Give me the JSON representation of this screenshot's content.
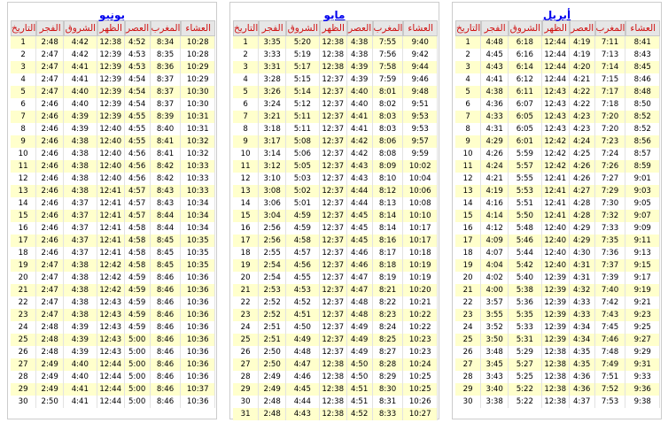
{
  "headers": [
    "التاريخ",
    "الفجر",
    "الشروق",
    "الظهر",
    "العصر",
    "المغرب",
    "العشاء"
  ],
  "months": [
    {
      "name": "أبريل",
      "rows": [
        [
          "1",
          "4:48",
          "6:18",
          "12:44",
          "4:19",
          "7:11",
          "8:41"
        ],
        [
          "2",
          "4:45",
          "6:16",
          "12:44",
          "4:19",
          "7:13",
          "8:43"
        ],
        [
          "3",
          "4:43",
          "6:14",
          "12:44",
          "4:20",
          "7:14",
          "8:45"
        ],
        [
          "4",
          "4:41",
          "6:12",
          "12:44",
          "4:21",
          "7:15",
          "8:46"
        ],
        [
          "5",
          "4:38",
          "6:11",
          "12:43",
          "4:22",
          "7:17",
          "8:48"
        ],
        [
          "6",
          "4:36",
          "6:07",
          "12:43",
          "4:22",
          "7:18",
          "8:50"
        ],
        [
          "7",
          "4:33",
          "6:05",
          "12:43",
          "4:23",
          "7:20",
          "8:52"
        ],
        [
          "8",
          "4:31",
          "6:05",
          "12:43",
          "4:23",
          "7:20",
          "8:52"
        ],
        [
          "9",
          "4:29",
          "6:01",
          "12:42",
          "4:24",
          "7:23",
          "8:56"
        ],
        [
          "10",
          "4:26",
          "5:59",
          "12:42",
          "4:25",
          "7:24",
          "8:57"
        ],
        [
          "11",
          "4:24",
          "5:57",
          "12:42",
          "4:26",
          "7:26",
          "8:59"
        ],
        [
          "12",
          "4:21",
          "5:55",
          "12:41",
          "4:26",
          "7:27",
          "9:01"
        ],
        [
          "13",
          "4:19",
          "5:53",
          "12:41",
          "4:27",
          "7:29",
          "9:03"
        ],
        [
          "14",
          "4:16",
          "5:51",
          "12:41",
          "4:28",
          "7:30",
          "9:05"
        ],
        [
          "15",
          "4:14",
          "5:50",
          "12:41",
          "4:28",
          "7:32",
          "9:07"
        ],
        [
          "16",
          "4:12",
          "5:48",
          "12:40",
          "4:29",
          "7:33",
          "9:09"
        ],
        [
          "17",
          "4:09",
          "5:46",
          "12:40",
          "4:29",
          "7:35",
          "9:11"
        ],
        [
          "18",
          "4:07",
          "5:44",
          "12:40",
          "4:30",
          "7:36",
          "9:13"
        ],
        [
          "19",
          "4:04",
          "5:42",
          "12:40",
          "4:31",
          "7:37",
          "9:15"
        ],
        [
          "20",
          "4:02",
          "5:40",
          "12:39",
          "4:31",
          "7:39",
          "9:17"
        ],
        [
          "21",
          "4:00",
          "5:38",
          "12:39",
          "4:32",
          "7:40",
          "9:19"
        ],
        [
          "22",
          "3:57",
          "5:36",
          "12:39",
          "4:33",
          "7:42",
          "9:21"
        ],
        [
          "23",
          "3:55",
          "5:35",
          "12:39",
          "4:33",
          "7:43",
          "9:23"
        ],
        [
          "24",
          "3:52",
          "5:33",
          "12:39",
          "4:34",
          "7:45",
          "9:25"
        ],
        [
          "25",
          "3:50",
          "5:31",
          "12:39",
          "4:34",
          "7:46",
          "9:27"
        ],
        [
          "26",
          "3:48",
          "5:29",
          "12:38",
          "4:35",
          "7:48",
          "9:29"
        ],
        [
          "27",
          "3:45",
          "5:27",
          "12:38",
          "4:35",
          "7:49",
          "9:31"
        ],
        [
          "28",
          "3:43",
          "5:25",
          "12:38",
          "4:36",
          "7:51",
          "9:33"
        ],
        [
          "29",
          "3:40",
          "5:22",
          "12:38",
          "4:36",
          "7:52",
          "9:36"
        ],
        [
          "30",
          "3:38",
          "5:22",
          "12:38",
          "4:37",
          "7:53",
          "9:38"
        ]
      ]
    },
    {
      "name": "مايو",
      "rows": [
        [
          "1",
          "3:35",
          "5:20",
          "12:38",
          "4:38",
          "7:55",
          "9:40"
        ],
        [
          "2",
          "3:33",
          "5:19",
          "12:38",
          "4:38",
          "7:56",
          "9:42"
        ],
        [
          "3",
          "3:31",
          "5:17",
          "12:38",
          "4:39",
          "7:58",
          "9:44"
        ],
        [
          "4",
          "3:28",
          "5:15",
          "12:37",
          "4:39",
          "7:59",
          "9:46"
        ],
        [
          "5",
          "3:26",
          "5:14",
          "12:37",
          "4:40",
          "8:01",
          "9:48"
        ],
        [
          "6",
          "3:24",
          "5:12",
          "12:37",
          "4:40",
          "8:02",
          "9:51"
        ],
        [
          "7",
          "3:21",
          "5:11",
          "12:37",
          "4:41",
          "8:03",
          "9:53"
        ],
        [
          "8",
          "3:18",
          "5:11",
          "12:37",
          "4:41",
          "8:03",
          "9:53"
        ],
        [
          "9",
          "3:17",
          "5:08",
          "12:37",
          "4:42",
          "8:06",
          "9:57"
        ],
        [
          "10",
          "3:14",
          "5:06",
          "12:37",
          "4:42",
          "8:08",
          "9:59"
        ],
        [
          "11",
          "3:12",
          "5:05",
          "12:37",
          "4:43",
          "8:09",
          "10:02"
        ],
        [
          "12",
          "3:10",
          "5:03",
          "12:37",
          "4:43",
          "8:10",
          "10:04"
        ],
        [
          "13",
          "3:08",
          "5:02",
          "12:37",
          "4:44",
          "8:12",
          "10:06"
        ],
        [
          "14",
          "3:06",
          "5:01",
          "12:37",
          "4:44",
          "8:13",
          "10:08"
        ],
        [
          "15",
          "3:04",
          "4:59",
          "12:37",
          "4:45",
          "8:14",
          "10:10"
        ],
        [
          "16",
          "2:56",
          "4:59",
          "12:37",
          "4:45",
          "8:14",
          "10:17"
        ],
        [
          "17",
          "2:56",
          "4:58",
          "12:37",
          "4:45",
          "8:16",
          "10:17"
        ],
        [
          "18",
          "2:55",
          "4:57",
          "12:37",
          "4:46",
          "8:17",
          "10:18"
        ],
        [
          "19",
          "2:54",
          "4:56",
          "12:37",
          "4:46",
          "8:18",
          "10:19"
        ],
        [
          "20",
          "2:54",
          "4:55",
          "12:37",
          "4:47",
          "8:19",
          "10:19"
        ],
        [
          "21",
          "2:53",
          "4:53",
          "12:37",
          "4:47",
          "8:21",
          "10:20"
        ],
        [
          "22",
          "2:52",
          "4:52",
          "12:37",
          "4:48",
          "8:22",
          "10:21"
        ],
        [
          "23",
          "2:52",
          "4:51",
          "12:37",
          "4:48",
          "8:23",
          "10:22"
        ],
        [
          "24",
          "2:51",
          "4:50",
          "12:37",
          "4:49",
          "8:24",
          "10:22"
        ],
        [
          "25",
          "2:51",
          "4:49",
          "12:37",
          "4:49",
          "8:25",
          "10:23"
        ],
        [
          "26",
          "2:50",
          "4:48",
          "12:37",
          "4:49",
          "8:27",
          "10:23"
        ],
        [
          "27",
          "2:50",
          "4:47",
          "12:38",
          "4:50",
          "8:28",
          "10:24"
        ],
        [
          "28",
          "2:49",
          "4:46",
          "12:38",
          "4:50",
          "8:29",
          "10:25"
        ],
        [
          "29",
          "2:49",
          "4:45",
          "12:38",
          "4:51",
          "8:30",
          "10:25"
        ],
        [
          "30",
          "2:48",
          "4:44",
          "12:38",
          "4:51",
          "8:31",
          "10:26"
        ],
        [
          "31",
          "2:48",
          "4:43",
          "12:38",
          "4:52",
          "8:33",
          "10:27"
        ]
      ]
    },
    {
      "name": "يونيو",
      "rows": [
        [
          "1",
          "2:48",
          "4:42",
          "12:38",
          "4:52",
          "8:34",
          "10:28"
        ],
        [
          "2",
          "2:47",
          "4:42",
          "12:39",
          "4:53",
          "8:35",
          "10:28"
        ],
        [
          "3",
          "2:47",
          "4:41",
          "12:39",
          "4:53",
          "8:36",
          "10:29"
        ],
        [
          "4",
          "2:47",
          "4:41",
          "12:39",
          "4:54",
          "8:37",
          "10:29"
        ],
        [
          "5",
          "2:47",
          "4:40",
          "12:39",
          "4:54",
          "8:37",
          "10:30"
        ],
        [
          "6",
          "2:46",
          "4:40",
          "12:39",
          "4:54",
          "8:37",
          "10:30"
        ],
        [
          "7",
          "2:46",
          "4:39",
          "12:39",
          "4:55",
          "8:39",
          "10:31"
        ],
        [
          "8",
          "2:46",
          "4:39",
          "12:40",
          "4:55",
          "8:40",
          "10:31"
        ],
        [
          "9",
          "2:46",
          "4:38",
          "12:40",
          "4:55",
          "8:41",
          "10:32"
        ],
        [
          "10",
          "2:46",
          "4:38",
          "12:40",
          "4:56",
          "8:41",
          "10:32"
        ],
        [
          "11",
          "2:46",
          "4:38",
          "12:40",
          "4:56",
          "8:42",
          "10:33"
        ],
        [
          "12",
          "2:46",
          "4:38",
          "12:40",
          "4:56",
          "8:42",
          "10:33"
        ],
        [
          "13",
          "2:46",
          "4:38",
          "12:41",
          "4:57",
          "8:43",
          "10:33"
        ],
        [
          "14",
          "2:46",
          "4:37",
          "12:41",
          "4:57",
          "8:43",
          "10:34"
        ],
        [
          "15",
          "2:46",
          "4:37",
          "12:41",
          "4:57",
          "8:44",
          "10:34"
        ],
        [
          "16",
          "2:46",
          "4:37",
          "12:41",
          "4:58",
          "8:44",
          "10:34"
        ],
        [
          "17",
          "2:46",
          "4:37",
          "12:41",
          "4:58",
          "8:45",
          "10:35"
        ],
        [
          "18",
          "2:46",
          "4:37",
          "12:41",
          "4:58",
          "8:45",
          "10:35"
        ],
        [
          "19",
          "2:47",
          "4:38",
          "12:42",
          "4:58",
          "8:45",
          "10:35"
        ],
        [
          "20",
          "2:47",
          "4:38",
          "12:42",
          "4:59",
          "8:46",
          "10:36"
        ],
        [
          "21",
          "2:47",
          "4:38",
          "12:42",
          "4:59",
          "8:46",
          "10:36"
        ],
        [
          "22",
          "2:47",
          "4:38",
          "12:43",
          "4:59",
          "8:46",
          "10:36"
        ],
        [
          "23",
          "2:47",
          "4:38",
          "12:43",
          "4:59",
          "8:46",
          "10:36"
        ],
        [
          "24",
          "2:48",
          "4:39",
          "12:43",
          "4:59",
          "8:46",
          "10:36"
        ],
        [
          "25",
          "2:48",
          "4:39",
          "12:43",
          "5:00",
          "8:46",
          "10:36"
        ],
        [
          "26",
          "2:48",
          "4:39",
          "12:43",
          "5:00",
          "8:46",
          "10:36"
        ],
        [
          "27",
          "2:49",
          "4:40",
          "12:44",
          "5:00",
          "8:46",
          "10:36"
        ],
        [
          "28",
          "2:49",
          "4:40",
          "12:44",
          "5:00",
          "8:46",
          "10:36"
        ],
        [
          "29",
          "2:49",
          "4:41",
          "12:44",
          "5:00",
          "8:46",
          "10:37"
        ],
        [
          "30",
          "2:50",
          "4:41",
          "12:44",
          "5:00",
          "8:46",
          "10:36"
        ]
      ]
    }
  ]
}
